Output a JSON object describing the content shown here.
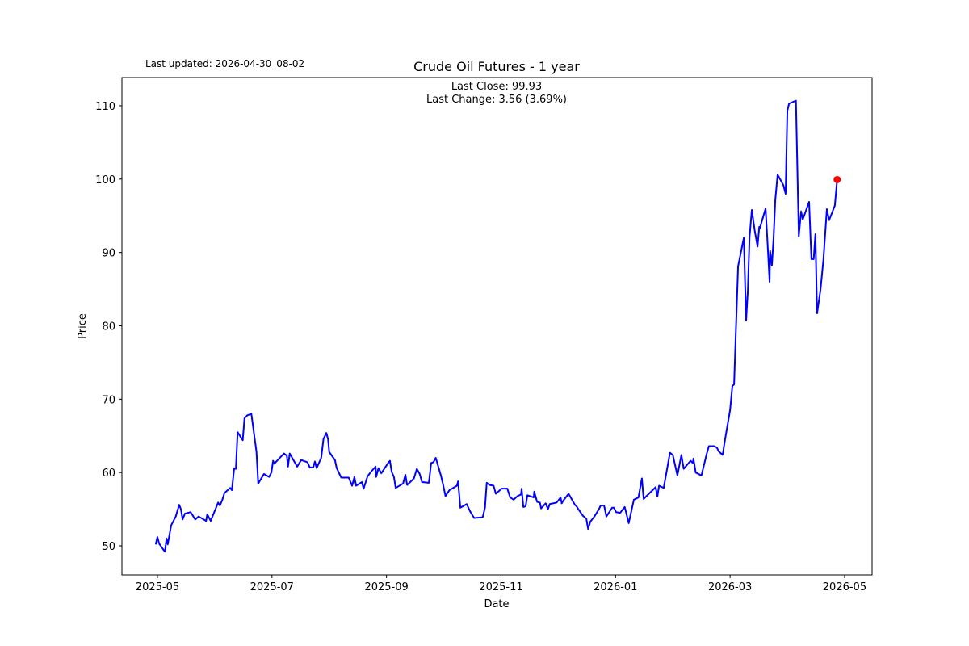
{
  "chart_data": {
    "type": "line",
    "title": "Crude Oil Futures - 1 year",
    "annotations": [
      "Last updated: 2026-04-30_08-02",
      "Last Close: 99.93",
      "Last Change: 3.56 (3.69%)"
    ],
    "x_label": "Date",
    "y_label": "Price",
    "color": "#0000ff",
    "marker_color": "#ff0000",
    "xlim": [
      -0.62,
      12.48
    ],
    "ylim": [
      46.04,
      113.85
    ],
    "xticks": [
      {
        "value": 0,
        "label": "2025-05"
      },
      {
        "value": 2,
        "label": "2025-07"
      },
      {
        "value": 4,
        "label": "2025-09"
      },
      {
        "value": 6,
        "label": "2025-11"
      },
      {
        "value": 8,
        "label": "2026-01"
      },
      {
        "value": 10,
        "label": "2026-03"
      },
      {
        "value": 12,
        "label": "2026-05"
      }
    ],
    "yticks": [
      50,
      60,
      70,
      80,
      90,
      100,
      110
    ],
    "x": [
      -0.03,
      0,
      0.03,
      0.13,
      0.16,
      0.18,
      0.24,
      0.32,
      0.38,
      0.41,
      0.44,
      0.48,
      0.58,
      0.66,
      0.72,
      0.85,
      0.87,
      0.93,
      1.06,
      1.09,
      1.13,
      1.17,
      1.27,
      1.3,
      1.34,
      1.37,
      1.4,
      1.49,
      1.52,
      1.57,
      1.64,
      1.73,
      1.76,
      1.86,
      1.95,
      1.99,
      2.02,
      2.04,
      2.21,
      2.26,
      2.28,
      2.31,
      2.44,
      2.51,
      2.62,
      2.66,
      2.72,
      2.75,
      2.78,
      2.86,
      2.9,
      2.95,
      2.98,
      3.0,
      3.1,
      3.13,
      3.21,
      3.34,
      3.4,
      3.44,
      3.47,
      3.57,
      3.6,
      3.67,
      3.74,
      3.81,
      3.82,
      3.86,
      3.91,
      4.02,
      4.06,
      4.09,
      4.13,
      4.16,
      4.29,
      4.33,
      4.36,
      4.48,
      4.53,
      4.58,
      4.62,
      4.74,
      4.78,
      4.82,
      4.86,
      4.95,
      4.99,
      5.03,
      5.1,
      5.23,
      5.25,
      5.29,
      5.4,
      5.46,
      5.53,
      5.68,
      5.72,
      5.75,
      5.8,
      5.87,
      5.91,
      6.01,
      6.11,
      6.16,
      6.22,
      6.29,
      6.35,
      6.36,
      6.39,
      6.43,
      6.46,
      6.57,
      6.58,
      6.63,
      6.68,
      6.7,
      6.78,
      6.82,
      6.85,
      6.97,
      7.04,
      7.06,
      7.09,
      7.18,
      7.29,
      7.32,
      7.35,
      7.43,
      7.49,
      7.52,
      7.56,
      7.63,
      7.71,
      7.74,
      7.8,
      7.84,
      7.94,
      7.97,
      8.01,
      8.08,
      8.16,
      8.23,
      8.32,
      8.4,
      8.46,
      8.49,
      8.7,
      8.73,
      8.76,
      8.84,
      8.9,
      8.95,
      9.0,
      9.08,
      9.15,
      9.19,
      9.31,
      9.35,
      9.36,
      9.4,
      9.5,
      9.59,
      9.63,
      9.72,
      9.77,
      9.8,
      9.87,
      9.91,
      10.0,
      10.04,
      10.07,
      10.1,
      10.14,
      10.24,
      10.28,
      10.31,
      10.34,
      10.38,
      10.43,
      10.48,
      10.51,
      10.52,
      10.62,
      10.65,
      10.69,
      10.7,
      10.73,
      10.76,
      10.79,
      10.83,
      10.93,
      10.97,
      11.0,
      11.03,
      11.15,
      11.2,
      11.24,
      11.27,
      11.38,
      11.42,
      11.46,
      11.49,
      11.52,
      11.58,
      11.63,
      11.69,
      11.73,
      11.83,
      11.87
    ],
    "values": [
      50.2,
      51.2,
      50.3,
      49.2,
      51.0,
      50.2,
      52.8,
      54.0,
      55.6,
      55.0,
      53.6,
      54.4,
      54.6,
      53.6,
      54.0,
      53.4,
      54.3,
      53.4,
      55.9,
      55.5,
      56.2,
      57.2,
      57.9,
      57.6,
      60.6,
      60.5,
      65.5,
      64.4,
      67.4,
      67.8,
      68.0,
      62.8,
      58.5,
      59.8,
      59.4,
      60.0,
      61.6,
      61.2,
      62.6,
      62.3,
      60.8,
      62.6,
      60.8,
      61.7,
      61.4,
      60.7,
      60.7,
      61.5,
      60.6,
      62.0,
      64.6,
      65.4,
      64.5,
      62.8,
      61.7,
      60.6,
      59.3,
      59.3,
      58.2,
      59.4,
      58.2,
      58.7,
      57.8,
      59.5,
      60.2,
      60.8,
      59.4,
      60.6,
      59.9,
      61.2,
      61.6,
      60.1,
      59.4,
      57.9,
      58.5,
      59.7,
      58.3,
      59.2,
      60.5,
      59.8,
      58.7,
      58.6,
      61.3,
      61.4,
      62.0,
      59.6,
      58.3,
      56.8,
      57.6,
      58.2,
      58.8,
      55.2,
      55.7,
      54.7,
      53.8,
      53.9,
      55.2,
      58.6,
      58.3,
      58.2,
      57.1,
      57.8,
      57.8,
      56.6,
      56.3,
      56.8,
      57.0,
      57.8,
      55.3,
      55.4,
      56.9,
      56.6,
      57.4,
      56.0,
      55.9,
      55.1,
      55.8,
      55.0,
      55.7,
      55.9,
      56.6,
      55.8,
      56.2,
      57.1,
      55.6,
      55.4,
      55.0,
      54.1,
      53.7,
      52.3,
      53.3,
      54.0,
      55.0,
      55.5,
      55.5,
      54.0,
      55.2,
      55.2,
      54.6,
      54.5,
      55.3,
      53.1,
      56.3,
      56.6,
      59.2,
      56.4,
      58.0,
      56.7,
      58.2,
      57.9,
      60.5,
      62.7,
      62.4,
      59.6,
      62.4,
      60.5,
      61.6,
      61.3,
      61.9,
      60.0,
      59.6,
      62.5,
      63.6,
      63.6,
      63.4,
      62.9,
      62.4,
      64.4,
      68.5,
      71.8,
      72.0,
      79.0,
      88.1,
      92.0,
      80.7,
      84.8,
      92.1,
      95.8,
      93.0,
      90.8,
      93.5,
      93.3,
      96.0,
      91.9,
      86.0,
      90.2,
      88.2,
      92.0,
      97.2,
      100.6,
      99.2,
      98.0,
      109.3,
      110.3,
      110.7,
      92.2,
      95.6,
      94.5,
      96.9,
      89.1,
      89.1,
      92.5,
      81.7,
      85.0,
      89.0,
      95.9,
      94.4,
      96.4,
      99.93
    ]
  }
}
